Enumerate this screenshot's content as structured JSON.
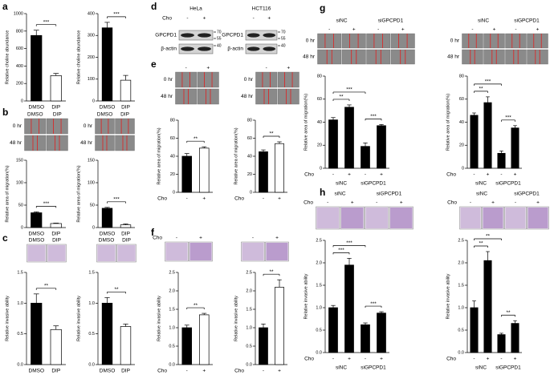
{
  "panel_labels": [
    "a",
    "b",
    "c",
    "d",
    "e",
    "f",
    "g",
    "h"
  ],
  "blots": {
    "cell_lines": [
      "HeLa",
      "HCT116"
    ],
    "treatment": "Cho",
    "conditions": [
      "-",
      "+"
    ],
    "proteins": [
      "GPCPD1",
      "β-actin"
    ],
    "markers": [
      "70",
      "55",
      "40"
    ]
  },
  "image_blocks": [
    {
      "cols": [
        "DMSO",
        "DIP"
      ],
      "rows": [
        "0 hr",
        "48 hr"
      ]
    },
    {
      "cols": [
        "DMSO",
        "DIP"
      ],
      "rows": [
        "0 hr",
        "48 hr"
      ]
    },
    {
      "cols": [
        "DMSO",
        "DIP"
      ]
    },
    {
      "cols": [
        "DMSO",
        "DIP"
      ]
    },
    {
      "cols": [
        "-",
        "+"
      ],
      "rows": [
        "0 hr",
        "48 hr"
      ]
    },
    {
      "cols": [
        "-",
        "+"
      ],
      "rows": [
        "0 hr",
        "48 hr"
      ]
    },
    {
      "treatment": "Cho",
      "cols": [
        "-",
        "+"
      ]
    },
    {
      "cols": [
        "-",
        "+"
      ]
    },
    {
      "groups": [
        "siNC",
        "siGPCPD1"
      ],
      "cols": [
        "-",
        "+",
        "-",
        "+"
      ],
      "rows": [
        "0 hr",
        "48 hr"
      ]
    },
    {
      "groups": [
        "siNC",
        "siGPCPD1"
      ],
      "cols": [
        "-",
        "+",
        "-",
        "+"
      ],
      "rows": [
        "0 hr",
        "48 hr"
      ]
    },
    {
      "groups": [
        "siNC",
        "siGPCPD1"
      ],
      "treatment": "Cho",
      "cols": [
        "-",
        "+",
        "-",
        "+"
      ]
    },
    {
      "groups": [
        "siNC",
        "siGPCPD1"
      ],
      "treatment": "Cho",
      "cols": [
        "-",
        "+",
        "-",
        "+"
      ]
    }
  ],
  "chart_data": [
    {
      "type": "bar",
      "ylabel": "Relative choline abundance",
      "categories": [
        "DMSO",
        "DIP"
      ],
      "values": [
        750,
        290
      ],
      "errors": [
        60,
        25
      ],
      "colors": [
        "#000000",
        "#ffffff"
      ],
      "ylim": [
        0,
        1000
      ],
      "yticks": [
        0,
        200,
        400,
        600,
        800,
        1000
      ],
      "significance": [
        "***"
      ]
    },
    {
      "type": "bar",
      "ylabel": "Relative choline abundance",
      "categories": [
        "DMSO",
        "DIP"
      ],
      "values": [
        335,
        95
      ],
      "errors": [
        25,
        22
      ],
      "colors": [
        "#000000",
        "#ffffff"
      ],
      "ylim": [
        0,
        400
      ],
      "yticks": [
        0,
        100,
        200,
        300,
        400
      ],
      "significance": [
        "***"
      ]
    },
    {
      "type": "bar",
      "ylabel": "Relative area of migration(%)",
      "categories": [
        "DMSO",
        "DIP"
      ],
      "values": [
        33,
        9
      ],
      "errors": [
        2,
        1
      ],
      "colors": [
        "#000000",
        "#ffffff"
      ],
      "ylim": [
        0,
        150
      ],
      "yticks": [
        0,
        50,
        100,
        150
      ],
      "significance": [
        "***"
      ]
    },
    {
      "type": "bar",
      "ylabel": "Relative area of migration(%)",
      "categories": [
        "DMSO",
        "DIP"
      ],
      "values": [
        43,
        6
      ],
      "errors": [
        2,
        2
      ],
      "colors": [
        "#000000",
        "#ffffff"
      ],
      "ylim": [
        0,
        150
      ],
      "yticks": [
        0,
        50,
        100,
        150
      ],
      "significance": [
        "***"
      ]
    },
    {
      "type": "bar",
      "ylabel": "Relative invasive ability",
      "categories": [
        "DMSO",
        "DIP"
      ],
      "values": [
        1,
        0.57
      ],
      "errors": [
        0.15,
        0.06
      ],
      "colors": [
        "#000000",
        "#ffffff"
      ],
      "ylim": [
        0,
        1.5
      ],
      "yticks": [
        {
          "value": 0,
          "label": "0.0"
        },
        0.5,
        {
          "value": 1,
          "label": "1.0"
        },
        1.5
      ],
      "significance": [
        "**"
      ]
    },
    {
      "type": "bar",
      "ylabel": "Relative invasive ability",
      "categories": [
        "DMSO",
        "DIP"
      ],
      "values": [
        1,
        0.62
      ],
      "errors": [
        0.09,
        0.04
      ],
      "colors": [
        "#000000",
        "#ffffff"
      ],
      "ylim": [
        0,
        1.5
      ],
      "yticks": [
        {
          "value": 0,
          "label": "0.0"
        },
        0.5,
        {
          "value": 1,
          "label": "1.0"
        },
        1.5
      ],
      "significance": [
        "**"
      ]
    },
    {
      "type": "bar",
      "ylabel": "Relative area of migration(%)",
      "x_label": "Cho",
      "categories": [
        "-",
        "+"
      ],
      "values": [
        40,
        49
      ],
      "errors": [
        3,
        1.5
      ],
      "colors": [
        "#000000",
        "#ffffff"
      ],
      "ylim": [
        0,
        80
      ],
      "yticks": [
        0,
        20,
        40,
        60,
        80
      ],
      "significance": [
        "**"
      ]
    },
    {
      "type": "bar",
      "ylabel": "Relative area of migration(%)",
      "x_label": "Cho",
      "categories": [
        "-",
        "+"
      ],
      "values": [
        45,
        54
      ],
      "errors": [
        2,
        2
      ],
      "colors": [
        "#000000",
        "#ffffff"
      ],
      "ylim": [
        0,
        80
      ],
      "yticks": [
        0,
        20,
        40,
        60,
        80
      ],
      "significance": [
        "**"
      ]
    },
    {
      "type": "bar",
      "ylabel": "Relative invasive ability",
      "x_label": "Cho",
      "categories": [
        "-",
        "+"
      ],
      "values": [
        1,
        1.35
      ],
      "errors": [
        0.07,
        0.04
      ],
      "colors": [
        "#000000",
        "#ffffff"
      ],
      "ylim": [
        0,
        2.5
      ],
      "yticks": [
        {
          "value": 0,
          "label": "0.0"
        },
        0.5,
        {
          "value": 1,
          "label": "1.0"
        },
        1.5,
        {
          "value": 2,
          "label": "2.0"
        },
        2.5
      ],
      "significance": [
        "**"
      ]
    },
    {
      "type": "bar",
      "ylabel": "Relative invasive ability",
      "x_label": "Cho",
      "categories": [
        "-",
        "+"
      ],
      "values": [
        1,
        2.1
      ],
      "errors": [
        0.1,
        0.2
      ],
      "colors": [
        "#000000",
        "#ffffff"
      ],
      "ylim": [
        0,
        2.5
      ],
      "yticks": [
        {
          "value": 0,
          "label": "0.0"
        },
        0.5,
        {
          "value": 1,
          "label": "1.0"
        },
        1.5,
        {
          "value": 2,
          "label": "2.0"
        },
        2.5
      ],
      "significance": [
        "**"
      ]
    },
    {
      "type": "bar",
      "ylabel": "Relative area of migration(%)",
      "x_label": "Cho",
      "categories": [
        "-",
        "+",
        "-",
        "+"
      ],
      "groups": [
        "siNC",
        "siGPCPD1"
      ],
      "values": [
        42,
        53,
        19,
        37
      ],
      "errors": [
        2,
        2,
        3,
        1
      ],
      "colors": [
        "#000000",
        "#000000",
        "#000000",
        "#000000"
      ],
      "ylim": [
        0,
        80
      ],
      "yticks": [
        0,
        20,
        40,
        60,
        80
      ],
      "significance": [
        "***",
        "**",
        "***"
      ]
    },
    {
      "type": "bar",
      "ylabel": "Relative area of migration(%)",
      "x_label": "Cho",
      "categories": [
        "-",
        "+",
        "-",
        "+"
      ],
      "groups": [
        "siNC",
        "siGPCPD1"
      ],
      "values": [
        46,
        57,
        13,
        35
      ],
      "errors": [
        2,
        5,
        2,
        2
      ],
      "colors": [
        "#000000",
        "#000000",
        "#000000",
        "#000000"
      ],
      "ylim": [
        0,
        80
      ],
      "yticks": [
        0,
        20,
        40,
        60,
        80
      ],
      "significance": [
        "***",
        "**",
        "***"
      ]
    },
    {
      "type": "bar",
      "ylabel": "Relative invasive ability",
      "x_label": "Cho",
      "categories": [
        "-",
        "+",
        "-",
        "+"
      ],
      "groups": [
        "siNC",
        "siGPCPD1"
      ],
      "values": [
        1,
        1.95,
        0.62,
        0.88
      ],
      "errors": [
        0.05,
        0.15,
        0.04,
        0.03
      ],
      "colors": [
        "#000000",
        "#000000",
        "#000000",
        "#000000"
      ],
      "ylim": [
        0,
        2.5
      ],
      "yticks": [
        {
          "value": 0,
          "label": "0.0"
        },
        0.5,
        {
          "value": 1,
          "label": "1.0"
        },
        1.5,
        {
          "value": 2,
          "label": "2.0"
        },
        2.5
      ],
      "significance": [
        "***",
        "***",
        "***"
      ]
    },
    {
      "type": "bar",
      "ylabel": "Relative invasive ability",
      "x_label": "Cho",
      "categories": [
        "-",
        "+",
        "-",
        "+"
      ],
      "groups": [
        "siNC",
        "siGPCPD1"
      ],
      "values": [
        1,
        2.05,
        0.4,
        0.65
      ],
      "errors": [
        0.15,
        0.2,
        0.03,
        0.06
      ],
      "colors": [
        "#000000",
        "#000000",
        "#000000",
        "#000000"
      ],
      "ylim": [
        0,
        2.5
      ],
      "yticks": [
        {
          "value": 0,
          "label": "0.0"
        },
        0.5,
        {
          "value": 1,
          "label": "1.0"
        },
        1.5,
        {
          "value": 2,
          "label": "2.0"
        },
        2.5
      ],
      "significance": [
        "**",
        "**",
        "**"
      ]
    }
  ]
}
